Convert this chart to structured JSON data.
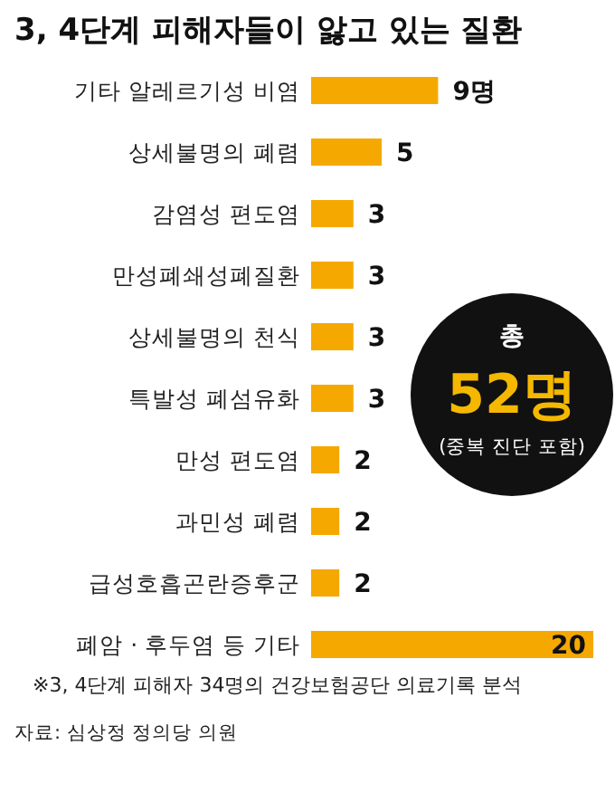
{
  "chart_data": {
    "type": "bar",
    "orientation": "horizontal",
    "title": "3, 4단계 피해자들이 앓고 있는 질환",
    "categories": [
      "기타 알레르기성 비염",
      "상세불명의 폐렴",
      "감염성 편도염",
      "만성폐쇄성폐질환",
      "상세불명의 천식",
      "특발성 폐섬유화",
      "만성 편도염",
      "과민성 폐렴",
      "급성호흡곤란증후군",
      "폐암 · 후두염 등 기타"
    ],
    "values": [
      9,
      5,
      3,
      3,
      3,
      3,
      2,
      2,
      2,
      20
    ],
    "value_labels": [
      "9명",
      "5",
      "3",
      "3",
      "3",
      "3",
      "2",
      "2",
      "2",
      "20"
    ],
    "color": "#f5a800",
    "annotations": [
      "총",
      "52명",
      "(중복 진단 포함)",
      "※3, 4단계 피해자 34명의 건강보험공단 의료기록 분석",
      "자료: 심상정 정의당 의원"
    ]
  }
}
